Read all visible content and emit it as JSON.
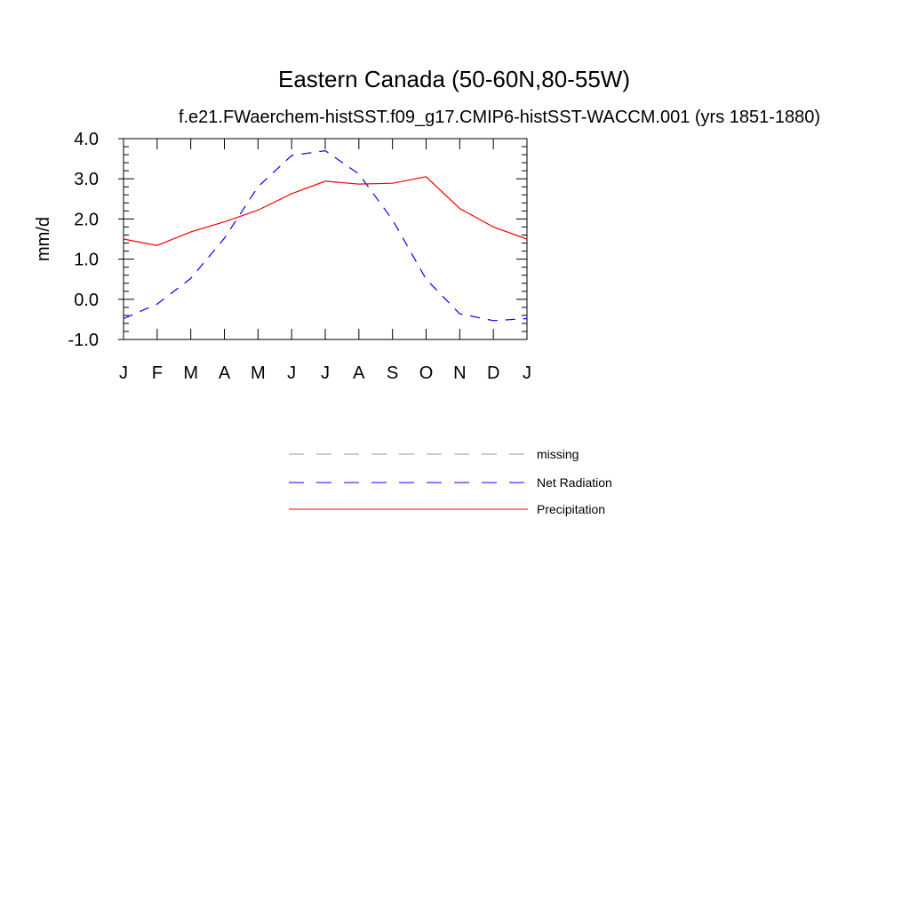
{
  "chart_data": {
    "type": "line",
    "title": "Eastern Canada (50-60N,80-55W)",
    "subtitle": "f.e21.FWaerchem-histSST.f09_g17.CMIP6-histSST-WACCM.001 (yrs 1851-1880)",
    "xlabel": "",
    "ylabel": "mm/d",
    "categories": [
      "J",
      "F",
      "M",
      "A",
      "M",
      "J",
      "J",
      "A",
      "S",
      "O",
      "N",
      "D",
      "J"
    ],
    "yticks": [
      "4.0",
      "3.0",
      "2.0",
      "1.0",
      "0.0",
      "-1.0"
    ],
    "ylim": [
      -1.0,
      4.0
    ],
    "grid": false,
    "legend_position": "bottom-center",
    "series": [
      {
        "name": "Net Radiation",
        "color": "#0000ff",
        "dash": "dashed",
        "values": [
          -0.48,
          -0.12,
          0.52,
          1.52,
          2.8,
          3.58,
          3.7,
          3.12,
          1.98,
          0.5,
          -0.36,
          -0.53,
          -0.48
        ]
      },
      {
        "name": "Precipitation",
        "color": "#ff0000",
        "dash": "solid",
        "values": [
          1.5,
          1.34,
          1.68,
          1.93,
          2.22,
          2.63,
          2.94,
          2.87,
          2.89,
          3.05,
          2.26,
          1.8,
          1.5
        ]
      }
    ],
    "legend": [
      {
        "label": "missing",
        "color": "#999999",
        "dash": "dashed"
      },
      {
        "label": "Net Radiation",
        "color": "#0000ff",
        "dash": "dashed"
      },
      {
        "label": "Precipitation",
        "color": "#ff0000",
        "dash": "solid"
      }
    ]
  }
}
